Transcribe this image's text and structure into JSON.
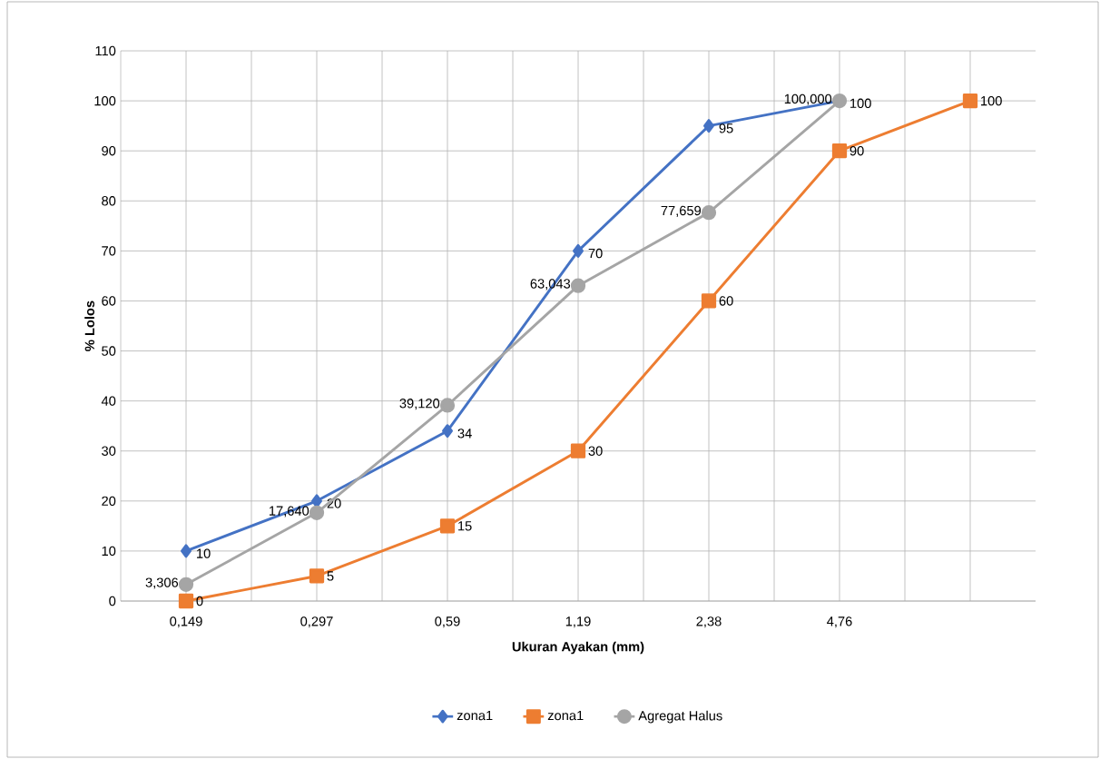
{
  "chart_data": {
    "type": "line",
    "xlabel": "Ukuran Ayakan (mm)",
    "ylabel": "% Lolos",
    "categories": [
      "0,149",
      "0,297",
      "0,59",
      "1,19",
      "2,38",
      "4,76",
      null
    ],
    "series": [
      {
        "name": "zona1",
        "color": "#4472c4",
        "marker": "diamond",
        "values": [
          10,
          20,
          34,
          70,
          95,
          100,
          null
        ],
        "value_labels": [
          "10",
          "20",
          "34",
          "70",
          "95",
          "100",
          null
        ]
      },
      {
        "name": "zona1",
        "color": "#ed7d31",
        "marker": "square",
        "values": [
          0,
          5,
          15,
          30,
          60,
          90,
          100
        ],
        "value_labels": [
          "0",
          "5",
          "15",
          "30",
          "60",
          "90",
          "100"
        ]
      },
      {
        "name": "Agregat Halus",
        "color": "#a5a5a5",
        "marker": "circle",
        "values": [
          3.306,
          17.64,
          39.12,
          63.043,
          77.659,
          100.0,
          null
        ],
        "value_labels": [
          "3,306",
          "17,640",
          "39,120",
          "63,043",
          "77,659",
          "100,000",
          null
        ]
      }
    ],
    "ylim": [
      0,
      110
    ],
    "yticks": [
      0,
      10,
      20,
      30,
      40,
      50,
      60,
      70,
      80,
      90,
      100,
      110
    ],
    "grid": true,
    "legend": "bottom",
    "line_style": "solid"
  }
}
